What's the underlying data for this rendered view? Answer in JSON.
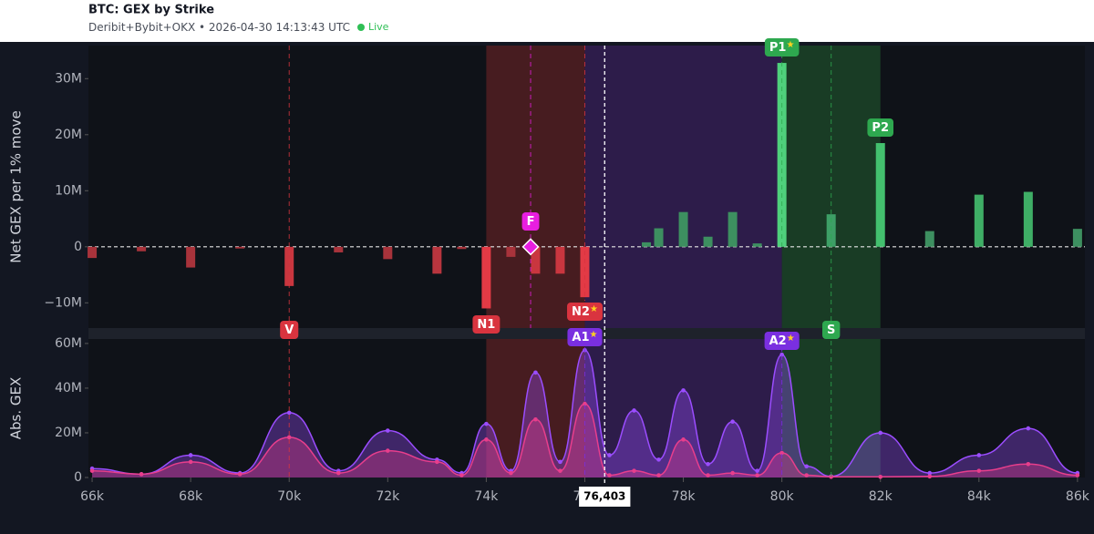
{
  "header": {
    "title": "BTC: GEX by Strike",
    "source": "Deribit+Bybit+OKX",
    "separator": "•",
    "timestamp": "2026-04-30 14:13:43 UTC",
    "live": "Live"
  },
  "chart_data": [
    {
      "type": "bar",
      "ylabel": "Net GEX per 1% move",
      "x": [
        66000,
        67000,
        68000,
        69000,
        70000,
        71000,
        72000,
        73000,
        73500,
        74000,
        74500,
        75000,
        75500,
        76000,
        77250,
        77500,
        78000,
        78500,
        79000,
        79500,
        80000,
        81000,
        82000,
        83000,
        84000,
        85000,
        86000
      ],
      "values": [
        -2000000,
        -800000,
        -3700000,
        -300000,
        -7000000,
        -1000000,
        -2200000,
        -4800000,
        -400000,
        -11000000,
        -1800000,
        -4800000,
        -4800000,
        -9000000,
        800000,
        3300000,
        6200000,
        1800000,
        6200000,
        600000,
        32800000,
        5800000,
        18500000,
        2800000,
        9300000,
        9800000,
        3200000
      ],
      "colors": [
        "#a8333b",
        "#a8333b",
        "#a8333b",
        "#a8333b",
        "#c9363f",
        "#a8333b",
        "#a8333b",
        "#b8353e",
        "#a8333b",
        "#e23a45",
        "#a8333b",
        "#c9363f",
        "#c9363f",
        "#e23a45",
        "#3d8f60",
        "#3d8f60",
        "#3d8f60",
        "#3d8f60",
        "#3d8f60",
        "#3d8f60",
        "#4fd07c",
        "#3d9f66",
        "#43c06e",
        "#3d8f60",
        "#3fae66",
        "#3fae66",
        "#3d8f60"
      ],
      "xlim": [
        65925,
        86150
      ],
      "ylim": [
        -14500000,
        35900000
      ],
      "yticks": [
        {
          "value": -10000000,
          "label": "−10M"
        },
        0,
        {
          "value": 10000000,
          "label": "10M"
        },
        {
          "value": 20000000,
          "label": "20M"
        },
        {
          "value": 30000000,
          "label": "30M"
        }
      ]
    },
    {
      "type": "area",
      "ylabel": "Abs. GEX",
      "x": [
        66000,
        67000,
        68000,
        69000,
        70000,
        71000,
        72000,
        73000,
        73500,
        74000,
        74500,
        75000,
        75500,
        76000,
        76500,
        77000,
        77500,
        78000,
        78500,
        79000,
        79500,
        80000,
        80500,
        81000,
        82000,
        83000,
        84000,
        85000,
        86000
      ],
      "series": [
        {
          "color": "#9b4dff",
          "values": [
            4000000,
            1500000,
            10000000,
            2000000,
            29000000,
            3000000,
            21000000,
            8000000,
            2000000,
            24000000,
            3000000,
            47000000,
            7000000,
            57000000,
            10000000,
            30000000,
            8000000,
            39000000,
            6000000,
            25000000,
            3000000,
            55000000,
            5000000,
            500000,
            20000000,
            2000000,
            10000000,
            22000000,
            2000000
          ]
        },
        {
          "color": "#e83e8c",
          "values": [
            3000000,
            1500000,
            7000000,
            1500000,
            18000000,
            2000000,
            12000000,
            7000000,
            1000000,
            17000000,
            2000000,
            26000000,
            3000000,
            33000000,
            1000000,
            3000000,
            1000000,
            17000000,
            1000000,
            2000000,
            1000000,
            11000000,
            1000000,
            300000,
            300000,
            500000,
            3000000,
            6000000,
            1000000
          ]
        }
      ],
      "xlim": [
        65925,
        86150
      ],
      "ylim": [
        0,
        62000000
      ],
      "yticks": [
        0,
        {
          "value": 20000000,
          "label": "20M"
        },
        {
          "value": 40000000,
          "label": "40M"
        },
        {
          "value": 60000000,
          "label": "60M"
        }
      ],
      "xticks": [
        {
          "value": 66000,
          "label": "66k"
        },
        {
          "value": 68000,
          "label": "68k"
        },
        {
          "value": 70000,
          "label": "70k"
        },
        {
          "value": 72000,
          "label": "72k"
        },
        {
          "value": 74000,
          "label": "74k"
        },
        {
          "value": 76000,
          "label": "76k"
        },
        {
          "value": 78000,
          "label": "78k"
        },
        {
          "value": 80000,
          "label": "80k"
        },
        {
          "value": 82000,
          "label": "82k"
        },
        {
          "value": 84000,
          "label": "84k"
        },
        {
          "value": 86000,
          "label": "86k"
        }
      ]
    }
  ],
  "overlays": {
    "star_symbol": "★",
    "zones": [
      {
        "from": 74000,
        "to": 76000,
        "color": "rgba(190,50,50,0.32)"
      },
      {
        "from": 76000,
        "to": 80000,
        "color": "rgba(110,50,180,0.32)"
      },
      {
        "from": 80000,
        "to": 82000,
        "color": "rgba(50,160,70,0.3)"
      }
    ],
    "markers": [
      {
        "label": "P1",
        "strike": 80000,
        "star": true,
        "color": "#2ea84f"
      },
      {
        "label": "P2",
        "strike": 82000,
        "star": false,
        "color": "#2ea84f"
      },
      {
        "label": "F",
        "strike": 74900,
        "star": false,
        "color": "#e81ee0"
      },
      {
        "label": "N1",
        "strike": 74000,
        "star": false,
        "color": "#d9343f"
      },
      {
        "label": "N2",
        "strike": 76000,
        "star": true,
        "color": "#d9343f"
      },
      {
        "label": "V",
        "strike": 70000,
        "star": false,
        "color": "#d9343f"
      },
      {
        "label": "S",
        "strike": 81000,
        "star": false,
        "color": "#2ea84f"
      },
      {
        "label": "A1",
        "strike": 76000,
        "star": true,
        "color": "#7a2fe0"
      },
      {
        "label": "A2",
        "strike": 80000,
        "star": true,
        "color": "#7a2fe0"
      }
    ],
    "spot": {
      "label": "76,403",
      "value": 76403
    }
  }
}
